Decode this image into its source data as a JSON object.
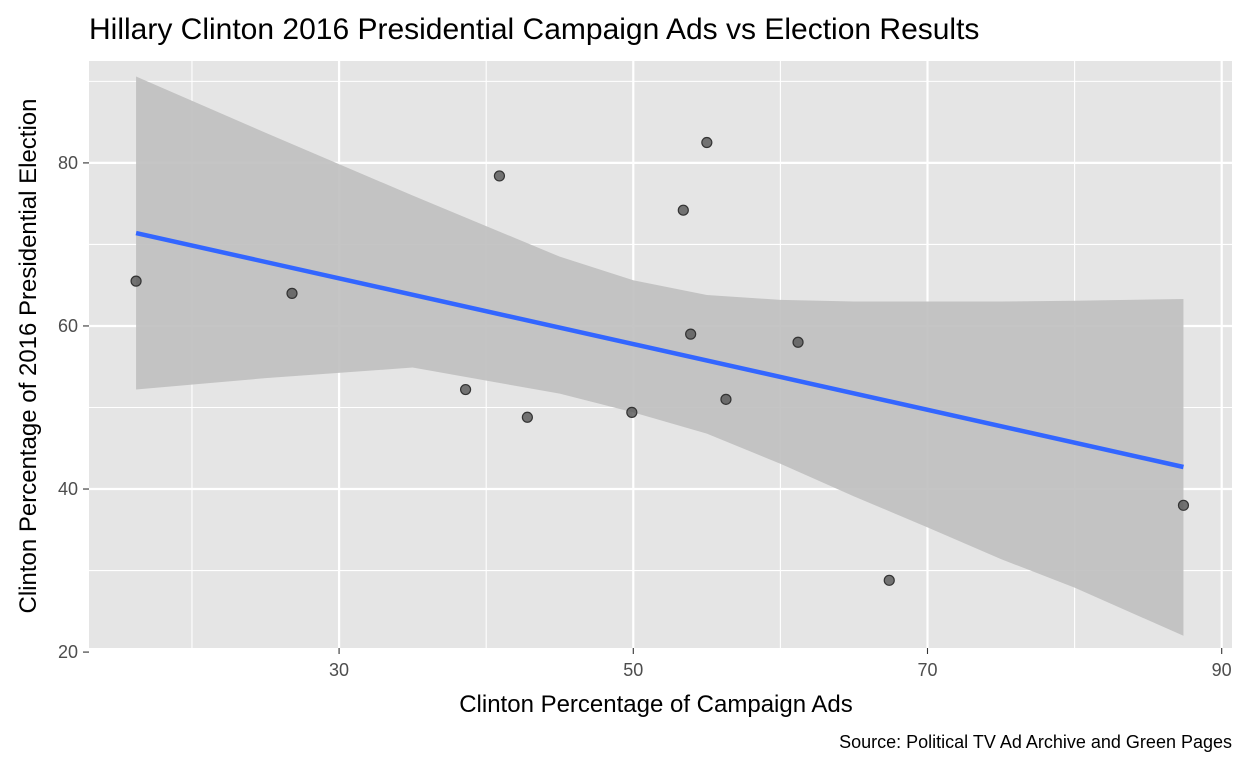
{
  "chart_data": {
    "type": "scatter",
    "title": "Hillary Clinton 2016 Presidential Campaign Ads vs Election Results",
    "xlabel": "Clinton Percentage of Campaign Ads",
    "ylabel": "Clinton Percentage of 2016 Presidential Election",
    "caption": "Source: Political TV Ad Archive and Green Pages",
    "xlim": [
      13.0,
      90.7
    ],
    "ylim": [
      20.5,
      92.5
    ],
    "x_ticks": [
      30,
      50,
      70,
      90
    ],
    "x_minor_ticks": [
      20,
      40,
      60,
      80
    ],
    "y_ticks": [
      20,
      40,
      60,
      80
    ],
    "y_minor_ticks": [
      30,
      50,
      70,
      90
    ],
    "grid": true,
    "legend": "none",
    "points": [
      {
        "x": 16.2,
        "y": 65.5
      },
      {
        "x": 26.8,
        "y": 64.0
      },
      {
        "x": 38.6,
        "y": 52.2
      },
      {
        "x": 40.9,
        "y": 78.4
      },
      {
        "x": 42.8,
        "y": 48.8
      },
      {
        "x": 49.9,
        "y": 49.4
      },
      {
        "x": 53.4,
        "y": 74.2
      },
      {
        "x": 53.9,
        "y": 59.0
      },
      {
        "x": 55.0,
        "y": 82.5
      },
      {
        "x": 56.3,
        "y": 51.0
      },
      {
        "x": 61.2,
        "y": 58.0
      },
      {
        "x": 67.4,
        "y": 28.8
      },
      {
        "x": 87.4,
        "y": 38.0
      }
    ],
    "fit": {
      "method": "linear regression",
      "line": [
        {
          "x": 16.2,
          "y": 71.4
        },
        {
          "x": 87.4,
          "y": 42.7
        }
      ],
      "band": [
        {
          "x": 16.2,
          "lower": 52.2,
          "upper": 90.6
        },
        {
          "x": 25.0,
          "lower": 53.6,
          "upper": 83.7
        },
        {
          "x": 35.0,
          "lower": 54.9,
          "upper": 76.0
        },
        {
          "x": 45.0,
          "lower": 51.7,
          "upper": 68.5
        },
        {
          "x": 50.0,
          "lower": 49.4,
          "upper": 65.6
        },
        {
          "x": 55.0,
          "lower": 46.8,
          "upper": 63.8
        },
        {
          "x": 60.0,
          "lower": 43.1,
          "upper": 63.2
        },
        {
          "x": 65.0,
          "lower": 39.1,
          "upper": 63.0
        },
        {
          "x": 70.0,
          "lower": 35.3,
          "upper": 63.0
        },
        {
          "x": 75.0,
          "lower": 31.4,
          "upper": 63.0
        },
        {
          "x": 80.0,
          "lower": 27.9,
          "upper": 63.1
        },
        {
          "x": 87.4,
          "lower": 22.0,
          "upper": 63.3
        }
      ]
    },
    "colors": {
      "panel_background": "#e5e5e5",
      "grid": "#ffffff",
      "fit_line": "#3366ff",
      "band": "#bfbfbf",
      "point": "#555555"
    }
  }
}
